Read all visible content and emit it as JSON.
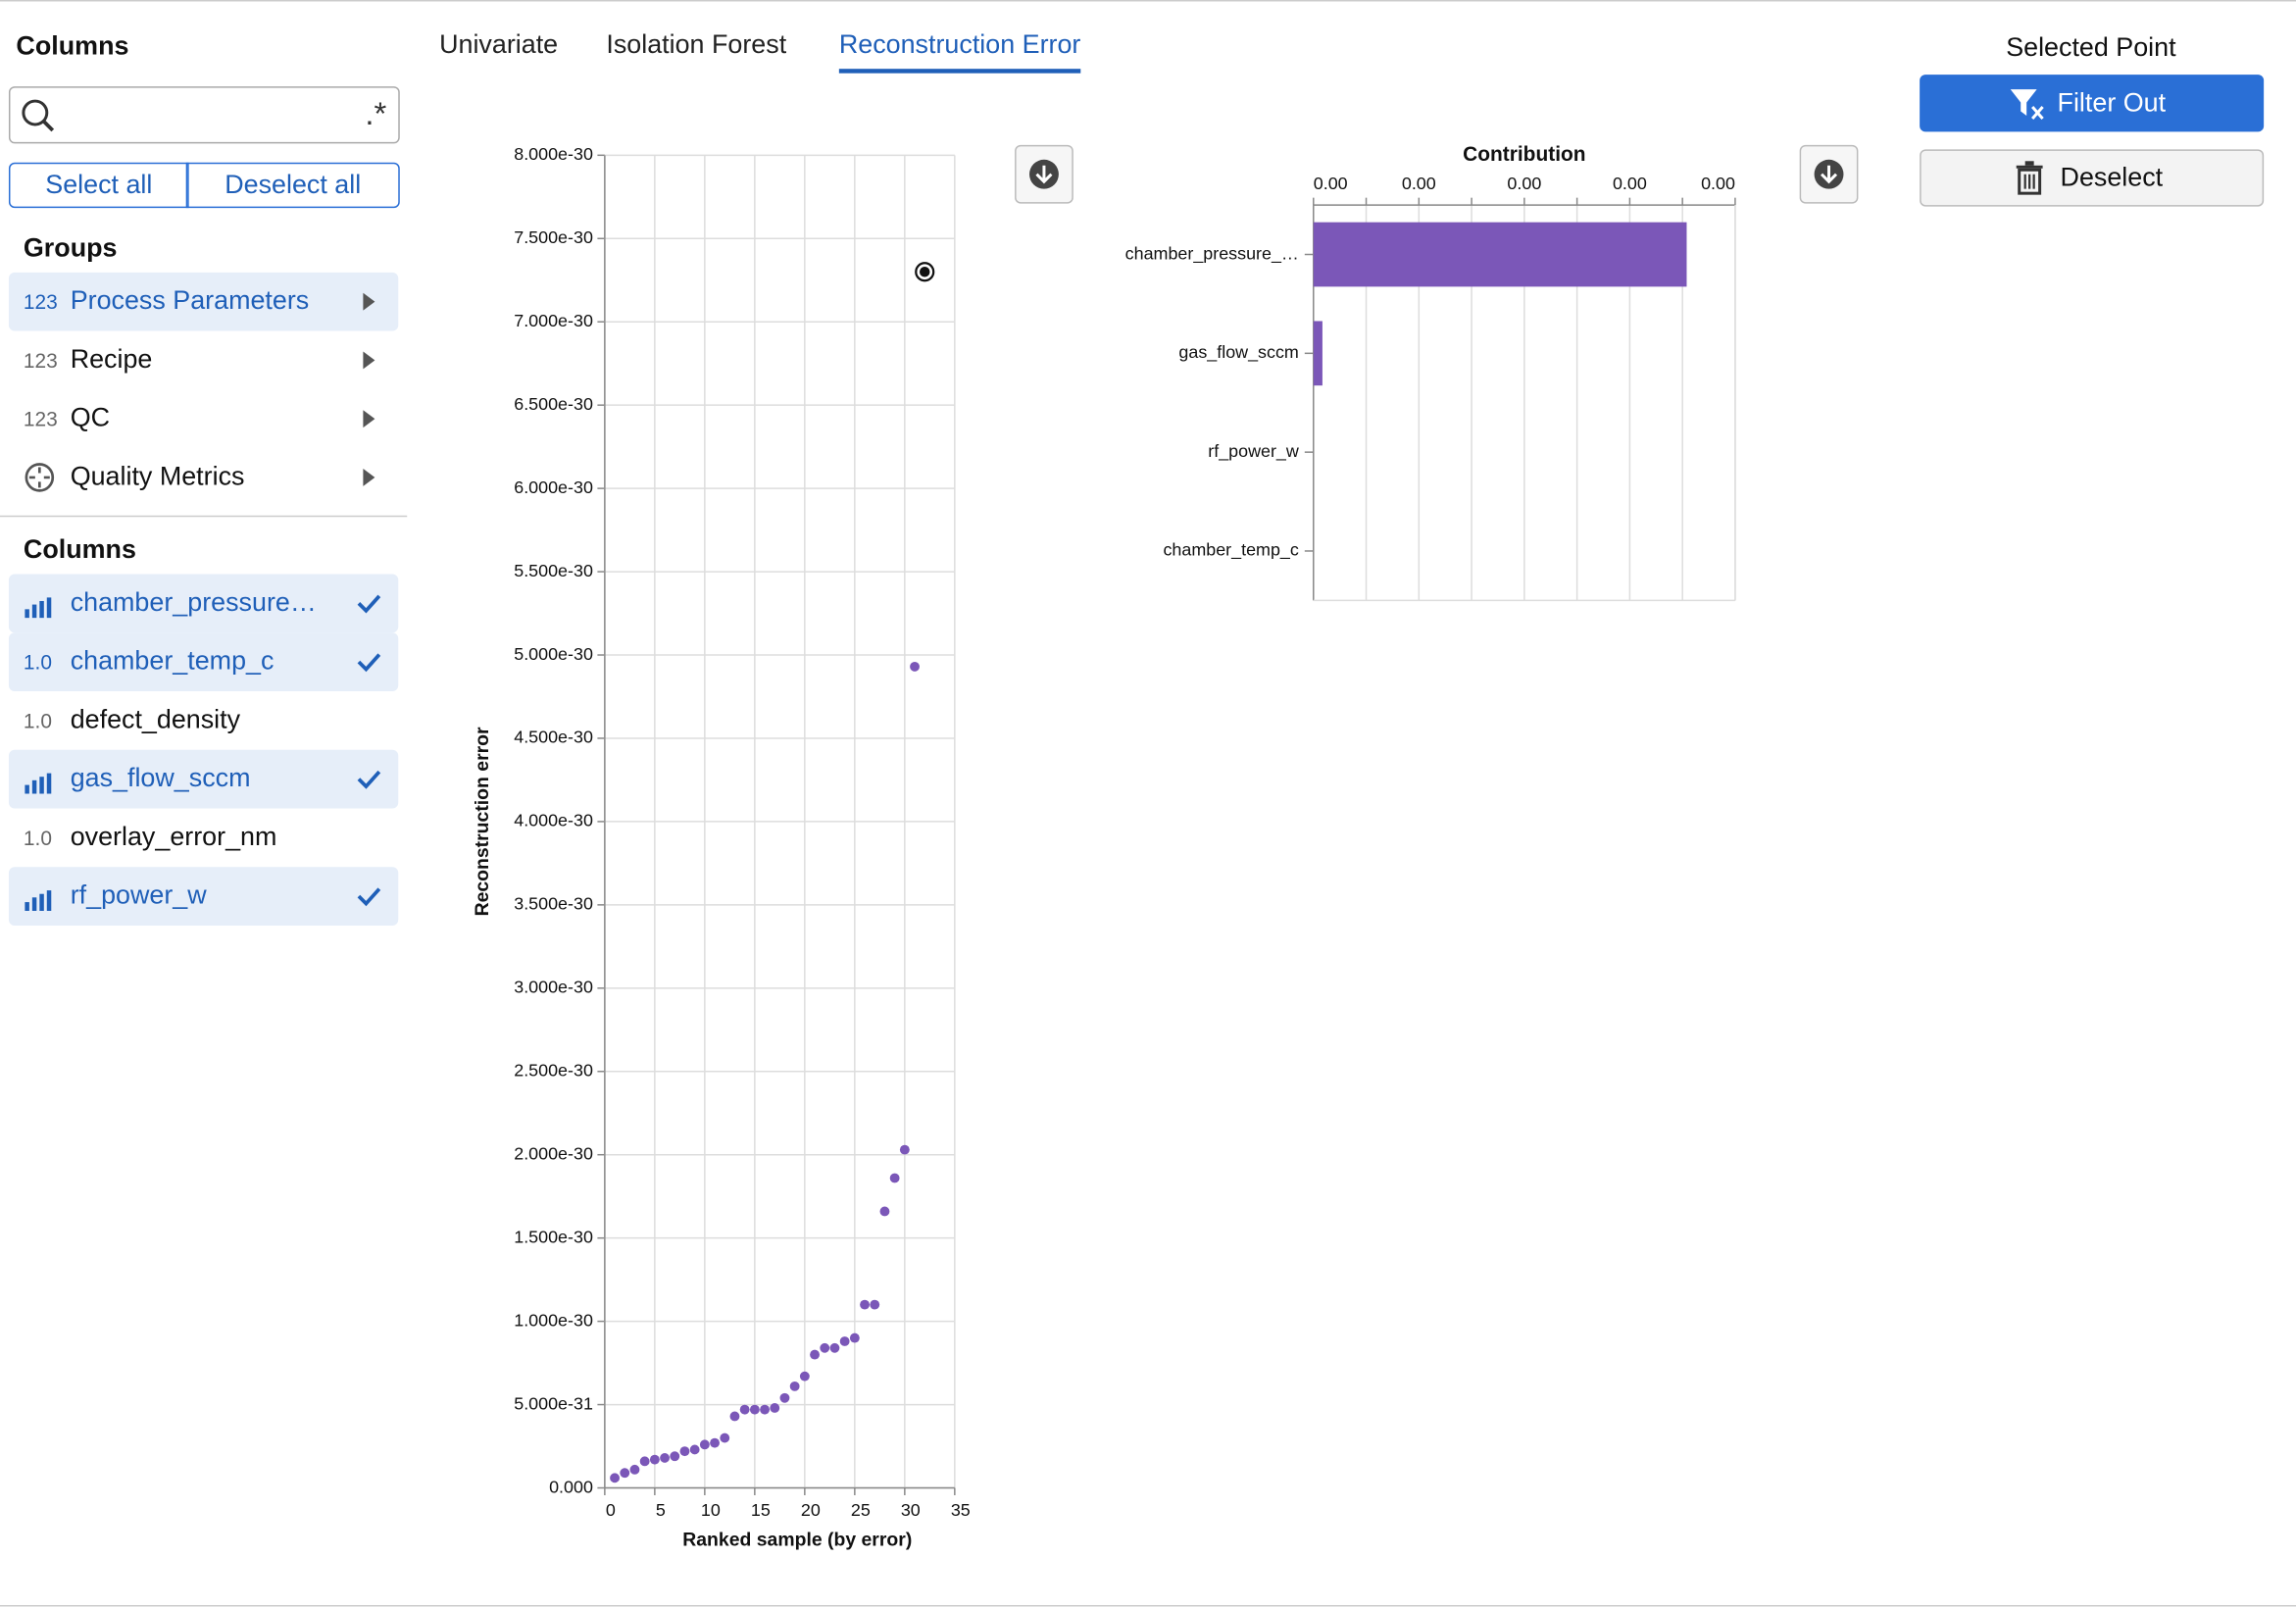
{
  "sidebar": {
    "title": "Columns",
    "search_regex": ".*",
    "select_all": "Select all",
    "deselect_all": "Deselect all",
    "groups_heading": "Groups",
    "groups": [
      {
        "icon": "123",
        "name": "Process Parameters",
        "selected": true
      },
      {
        "icon": "123",
        "name": "Recipe",
        "selected": false
      },
      {
        "icon": "123",
        "name": "QC",
        "selected": false
      },
      {
        "name": "Quality Metrics",
        "selected": false
      }
    ],
    "columns_heading": "Columns",
    "columns": [
      {
        "name": "chamber_pressure…",
        "selected": true
      },
      {
        "icon": "1.0",
        "name": "chamber_temp_c",
        "selected": true
      },
      {
        "icon": "1.0",
        "name": "defect_density",
        "selected": false
      },
      {
        "name": "gas_flow_sccm",
        "selected": true
      },
      {
        "icon": "1.0",
        "name": "overlay_error_nm",
        "selected": false
      },
      {
        "name": "rf_power_w",
        "selected": true
      }
    ]
  },
  "tabs": {
    "items": [
      "Univariate",
      "Isolation Forest",
      "Reconstruction Error"
    ],
    "active": 2
  },
  "selected_point": {
    "title": "Selected Point",
    "filter_out": "Filter Out",
    "deselect": "Deselect"
  },
  "chart_data": [
    {
      "type": "scatter",
      "x_label": "Ranked sample (by error)",
      "y_label": "Reconstruction error",
      "x": [
        1,
        2,
        3,
        4,
        5,
        6,
        7,
        8,
        9,
        10,
        11,
        12,
        13,
        14,
        15,
        16,
        17,
        18,
        19,
        20,
        21,
        22,
        23,
        24,
        25,
        26,
        27,
        28,
        29,
        30,
        31,
        32
      ],
      "values": [
        6e-32,
        9e-32,
        1.1e-31,
        1.6e-31,
        1.7e-31,
        1.8e-31,
        1.9e-31,
        2.2e-31,
        2.3e-31,
        2.6e-31,
        2.7e-31,
        3e-31,
        4.3e-31,
        4.7e-31,
        4.7e-31,
        4.7e-31,
        4.8e-31,
        5.4e-31,
        6.1e-31,
        6.7e-31,
        8e-31,
        8.4e-31,
        8.4e-31,
        8.8e-31,
        9e-31,
        1.1e-30,
        1.1e-30,
        1.66e-30,
        1.86e-30,
        2.03e-30,
        4.93e-30,
        7.3e-30
      ],
      "color": "#7b57b8",
      "selected": 31,
      "selected_color": "#111111",
      "xlim": [
        0,
        35
      ],
      "xticks": [
        0,
        5,
        10,
        15,
        20,
        25,
        30,
        35
      ],
      "ylim": [
        0,
        8e-30
      ],
      "yticks": [
        {
          "value": 0,
          "label": "0.000"
        },
        {
          "value": 5e-31,
          "label": "5.000e-31"
        },
        {
          "value": 1e-30,
          "label": "1.000e-30"
        },
        {
          "value": 1.5e-30,
          "label": "1.500e-30"
        },
        {
          "value": 2e-30,
          "label": "2.000e-30"
        },
        {
          "value": 2.5e-30,
          "label": "2.500e-30"
        },
        {
          "value": 3e-30,
          "label": "3.000e-30"
        },
        {
          "value": 3.5e-30,
          "label": "3.500e-30"
        },
        {
          "value": 4e-30,
          "label": "4.000e-30"
        },
        {
          "value": 4.5e-30,
          "label": "4.500e-30"
        },
        {
          "value": 5e-30,
          "label": "5.000e-30"
        },
        {
          "value": 5.5e-30,
          "label": "5.500e-30"
        },
        {
          "value": 6e-30,
          "label": "6.000e-30"
        },
        {
          "value": 6.5e-30,
          "label": "6.500e-30"
        },
        {
          "value": 7e-30,
          "label": "7.000e-30"
        },
        {
          "value": 7.5e-30,
          "label": "7.500e-30"
        },
        {
          "value": 8e-30,
          "label": "8.000e-30"
        }
      ],
      "grid": true
    },
    {
      "type": "bar",
      "orientation": "horizontal",
      "title": "Contribution",
      "categories": [
        "chamber_pressure_…",
        "gas_flow_sccm",
        "rf_power_w",
        "chamber_temp_c"
      ],
      "values": [
        7.08e-30,
        1.7e-31,
        0,
        0
      ],
      "color": "#7b57b8",
      "xlim": [
        0,
        8e-30
      ],
      "xticks": [
        {
          "value": 0,
          "label": "0.00"
        },
        {
          "value": 2e-30,
          "label": "0.00"
        },
        {
          "value": 4e-30,
          "label": "0.00"
        },
        {
          "value": 6e-30,
          "label": "0.00"
        },
        {
          "value": 8e-30,
          "label": "0.00"
        }
      ],
      "minor_xticks": [
        1e-30,
        3e-30,
        5e-30,
        7e-30
      ],
      "grid": true
    }
  ]
}
